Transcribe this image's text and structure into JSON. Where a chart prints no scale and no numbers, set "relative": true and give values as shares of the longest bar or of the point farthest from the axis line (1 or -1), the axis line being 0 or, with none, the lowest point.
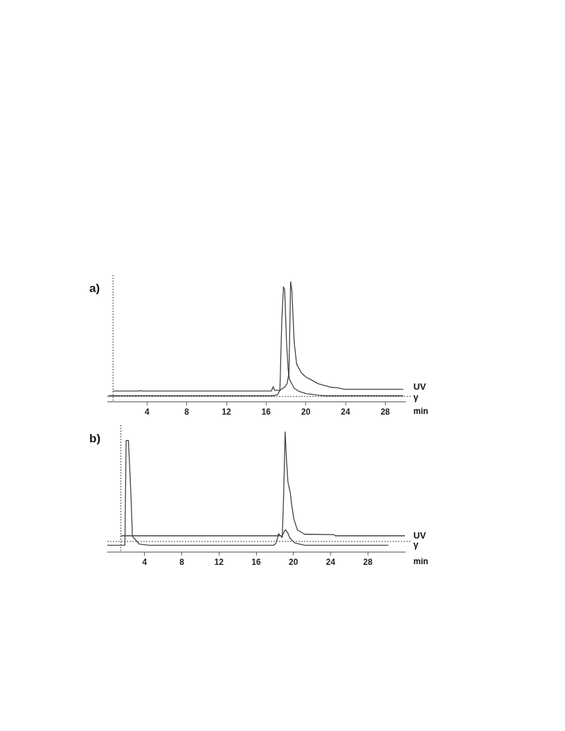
{
  "chart_data": [
    {
      "type": "line",
      "title": "a)",
      "xlabel": "min",
      "relative": true,
      "xlim": [
        0,
        30
      ],
      "xticks": [
        4,
        8,
        12,
        16,
        20,
        24,
        28
      ],
      "line_style": "solid",
      "legend": false,
      "series": [
        {
          "name": "UV",
          "color": "#404040",
          "x": [
            0.58,
            3.28,
            3.35,
            3.45,
            16.54,
            16.71,
            16.85,
            17.39,
            17.63,
            17.87,
            18.11,
            18.3,
            18.4,
            18.47,
            18.59,
            18.83,
            19.08,
            19.56,
            20.04,
            20.28,
            21.25,
            22.45,
            23.18,
            23.9,
            29.81
          ],
          "values": [
            0.091,
            0.091,
            0.096,
            0.091,
            0.091,
            0.127,
            0.096,
            0.096,
            0.111,
            0.123,
            0.151,
            0.241,
            0.677,
            1.0,
            0.931,
            0.495,
            0.314,
            0.241,
            0.205,
            0.196,
            0.151,
            0.123,
            0.118,
            0.105,
            0.105
          ]
        },
        {
          "name": "γ",
          "color": "#404040",
          "x": [
            0.09,
            16.66,
            17.15,
            17.39,
            17.58,
            17.75,
            17.87,
            18.06,
            18.23,
            18.35,
            18.83,
            19.31,
            20.04,
            21.25,
            21.97,
            29.81
          ],
          "values": [
            0.051,
            0.051,
            0.06,
            0.096,
            0.677,
            0.958,
            0.931,
            0.495,
            0.26,
            0.187,
            0.114,
            0.087,
            0.069,
            0.056,
            0.051,
            0.051
          ]
        }
      ],
      "ref_lines": [
        {
          "axis": "x",
          "value": 0.57,
          "line_style": "dotted",
          "color": "#404040"
        },
        {
          "axis": "y",
          "value": 0.045,
          "line_style": "dotted",
          "color": "#404040"
        }
      ]
    },
    {
      "type": "line",
      "title": "b)",
      "xlabel": "min",
      "relative": true,
      "xlim": [
        0,
        32
      ],
      "xticks": [
        4,
        8,
        12,
        16,
        20,
        24,
        28
      ],
      "line_style": "solid",
      "legend": false,
      "series": [
        {
          "name": "UV",
          "color": "#404040",
          "x": [
            1.46,
            18.65,
            18.8,
            18.96,
            19.11,
            19.26,
            19.41,
            19.67,
            19.8,
            20.05,
            20.43,
            21.19,
            24.37,
            24.5,
            31.99
          ],
          "values": [
            0.136,
            0.136,
            0.121,
            0.493,
            1.0,
            0.764,
            0.583,
            0.493,
            0.402,
            0.275,
            0.185,
            0.149,
            0.145,
            0.136,
            0.136
          ]
        },
        {
          "name": "γ",
          "color": "#404040",
          "x": [
            0,
            1.64,
            1.89,
            2.02,
            2.27,
            2.53,
            2.7,
            3.03,
            3.42,
            4.43,
            17.89,
            18.15,
            18.4,
            18.6,
            18.78,
            19.04,
            19.17,
            19.41,
            19.67,
            20.17,
            21.19,
            30.21
          ],
          "values": [
            0.058,
            0.058,
            0.058,
            0.928,
            0.928,
            0.493,
            0.13,
            0.103,
            0.067,
            0.058,
            0.058,
            0.076,
            0.154,
            0.136,
            0.13,
            0.176,
            0.185,
            0.158,
            0.112,
            0.076,
            0.058,
            0.058
          ]
        }
      ],
      "ref_lines": [
        {
          "axis": "x",
          "value": 1.46,
          "line_style": "dotted",
          "color": "#404040"
        },
        {
          "axis": "y",
          "value": 0.089,
          "line_style": "dotted",
          "color": "#404040"
        }
      ]
    }
  ]
}
